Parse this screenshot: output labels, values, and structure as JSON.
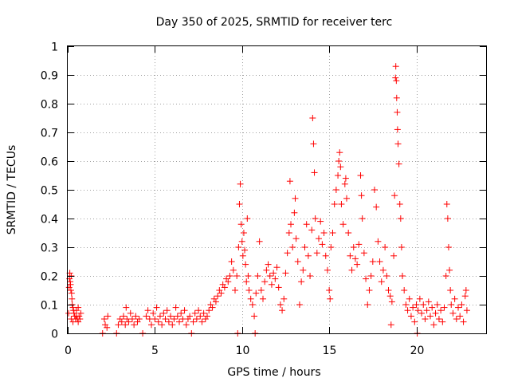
{
  "chart_data": {
    "type": "scatter",
    "title": "Day 350 of 2025, SRMTID for receiver terc",
    "xlabel": "GPS time / hours",
    "ylabel": "SRMTID / TECUs",
    "xlim": [
      0,
      24
    ],
    "ylim": [
      0,
      1
    ],
    "x_ticks": [
      0,
      5,
      10,
      15,
      20
    ],
    "x_tick_labels": [
      "0",
      "5",
      "10",
      "15",
      "20"
    ],
    "y_ticks": [
      0,
      0.1,
      0.2,
      0.3,
      0.4,
      0.5,
      0.6,
      0.7,
      0.8,
      0.9,
      1
    ],
    "y_tick_labels": [
      "0",
      "0.1",
      "0.2",
      "0.3",
      "0.4",
      "0.5",
      "0.6",
      "0.7",
      "0.8",
      "0.9",
      "1"
    ],
    "grid": true,
    "marker": "+",
    "series": [
      {
        "name": "SRMTID",
        "color": "#ff0000",
        "points": [
          [
            0.05,
            0.07
          ],
          [
            0.08,
            0.16
          ],
          [
            0.1,
            0.19
          ],
          [
            0.12,
            0.21
          ],
          [
            0.14,
            0.18
          ],
          [
            0.16,
            0.17
          ],
          [
            0.18,
            0.15
          ],
          [
            0.2,
            0.2
          ],
          [
            0.22,
            0.14
          ],
          [
            0.24,
            0.12
          ],
          [
            0.26,
            0.1
          ],
          [
            0.3,
            0.09
          ],
          [
            0.33,
            0.08
          ],
          [
            0.36,
            0.07
          ],
          [
            0.4,
            0.06
          ],
          [
            0.45,
            0.05
          ],
          [
            0.5,
            0.06
          ],
          [
            0.55,
            0.05
          ],
          [
            0.6,
            0.04
          ],
          [
            0.65,
            0.06
          ],
          [
            0.7,
            0.05
          ],
          [
            0.75,
            0.07
          ],
          [
            0.2,
            0.05
          ],
          [
            0.3,
            0.04
          ],
          [
            0.5,
            0.08
          ],
          [
            0.6,
            0.09
          ],
          [
            2.0,
            0.0
          ],
          [
            2.1,
            0.05
          ],
          [
            2.15,
            0.03
          ],
          [
            2.25,
            0.02
          ],
          [
            2.3,
            0.06
          ],
          [
            2.8,
            0.0
          ],
          [
            2.9,
            0.03
          ],
          [
            3.0,
            0.05
          ],
          [
            3.1,
            0.04
          ],
          [
            3.2,
            0.06
          ],
          [
            3.3,
            0.03
          ],
          [
            3.35,
            0.09
          ],
          [
            3.4,
            0.05
          ],
          [
            3.5,
            0.04
          ],
          [
            3.6,
            0.07
          ],
          [
            3.7,
            0.05
          ],
          [
            3.8,
            0.03
          ],
          [
            3.9,
            0.06
          ],
          [
            4.0,
            0.04
          ],
          [
            4.1,
            0.05
          ],
          [
            4.3,
            0.0
          ],
          [
            4.5,
            0.06
          ],
          [
            4.6,
            0.08
          ],
          [
            4.7,
            0.05
          ],
          [
            4.8,
            0.03
          ],
          [
            4.9,
            0.07
          ],
          [
            5.0,
            0.05
          ],
          [
            5.1,
            0.09
          ],
          [
            5.2,
            0.04
          ],
          [
            5.3,
            0.06
          ],
          [
            5.4,
            0.03
          ],
          [
            5.5,
            0.07
          ],
          [
            5.6,
            0.05
          ],
          [
            5.7,
            0.08
          ],
          [
            5.8,
            0.04
          ],
          [
            5.9,
            0.06
          ],
          [
            6.0,
            0.03
          ],
          [
            6.1,
            0.05
          ],
          [
            6.2,
            0.09
          ],
          [
            6.3,
            0.06
          ],
          [
            6.4,
            0.04
          ],
          [
            6.5,
            0.07
          ],
          [
            6.6,
            0.05
          ],
          [
            6.7,
            0.08
          ],
          [
            6.8,
            0.03
          ],
          [
            6.9,
            0.05
          ],
          [
            7.0,
            0.06
          ],
          [
            7.1,
            0.0
          ],
          [
            7.2,
            0.04
          ],
          [
            7.3,
            0.07
          ],
          [
            7.4,
            0.05
          ],
          [
            7.5,
            0.08
          ],
          [
            7.6,
            0.06
          ],
          [
            7.7,
            0.04
          ],
          [
            7.8,
            0.07
          ],
          [
            7.9,
            0.05
          ],
          [
            8.0,
            0.06
          ],
          [
            8.1,
            0.08
          ],
          [
            8.2,
            0.1
          ],
          [
            8.3,
            0.09
          ],
          [
            8.4,
            0.12
          ],
          [
            8.5,
            0.11
          ],
          [
            8.6,
            0.13
          ],
          [
            8.7,
            0.15
          ],
          [
            8.8,
            0.14
          ],
          [
            8.9,
            0.17
          ],
          [
            9.0,
            0.16
          ],
          [
            9.1,
            0.19
          ],
          [
            9.2,
            0.18
          ],
          [
            9.3,
            0.2
          ],
          [
            9.4,
            0.25
          ],
          [
            9.5,
            0.22
          ],
          [
            9.6,
            0.15
          ],
          [
            9.7,
            0.2
          ],
          [
            9.75,
            0.0
          ],
          [
            9.8,
            0.3
          ],
          [
            9.85,
            0.45
          ],
          [
            9.9,
            0.52
          ],
          [
            9.95,
            0.38
          ],
          [
            10.0,
            0.32
          ],
          [
            10.05,
            0.27
          ],
          [
            10.1,
            0.35
          ],
          [
            10.15,
            0.29
          ],
          [
            10.2,
            0.24
          ],
          [
            10.25,
            0.18
          ],
          [
            10.3,
            0.4
          ],
          [
            10.35,
            0.2
          ],
          [
            10.4,
            0.15
          ],
          [
            10.5,
            0.12
          ],
          [
            10.6,
            0.1
          ],
          [
            10.7,
            0.06
          ],
          [
            10.75,
            0.0
          ],
          [
            10.8,
            0.14
          ],
          [
            10.9,
            0.2
          ],
          [
            11.0,
            0.32
          ],
          [
            11.1,
            0.15
          ],
          [
            11.2,
            0.12
          ],
          [
            11.3,
            0.18
          ],
          [
            11.4,
            0.22
          ],
          [
            11.5,
            0.24
          ],
          [
            11.6,
            0.2
          ],
          [
            11.7,
            0.17
          ],
          [
            11.8,
            0.21
          ],
          [
            11.9,
            0.19
          ],
          [
            12.0,
            0.23
          ],
          [
            12.1,
            0.16
          ],
          [
            12.2,
            0.1
          ],
          [
            12.3,
            0.08
          ],
          [
            12.4,
            0.12
          ],
          [
            12.5,
            0.21
          ],
          [
            12.6,
            0.28
          ],
          [
            12.7,
            0.35
          ],
          [
            12.75,
            0.53
          ],
          [
            12.8,
            0.38
          ],
          [
            12.9,
            0.3
          ],
          [
            13.0,
            0.42
          ],
          [
            13.05,
            0.47
          ],
          [
            13.1,
            0.33
          ],
          [
            13.2,
            0.25
          ],
          [
            13.3,
            0.1
          ],
          [
            13.4,
            0.18
          ],
          [
            13.5,
            0.22
          ],
          [
            13.6,
            0.3
          ],
          [
            13.7,
            0.38
          ],
          [
            13.8,
            0.27
          ],
          [
            13.9,
            0.2
          ],
          [
            14.0,
            0.36
          ],
          [
            14.05,
            0.75
          ],
          [
            14.1,
            0.66
          ],
          [
            14.15,
            0.56
          ],
          [
            14.2,
            0.4
          ],
          [
            14.3,
            0.28
          ],
          [
            14.4,
            0.33
          ],
          [
            14.5,
            0.39
          ],
          [
            14.6,
            0.31
          ],
          [
            14.7,
            0.35
          ],
          [
            14.8,
            0.27
          ],
          [
            14.9,
            0.22
          ],
          [
            15.0,
            0.15
          ],
          [
            15.05,
            0.12
          ],
          [
            15.1,
            0.3
          ],
          [
            15.2,
            0.35
          ],
          [
            15.3,
            0.45
          ],
          [
            15.4,
            0.5
          ],
          [
            15.5,
            0.55
          ],
          [
            15.55,
            0.6
          ],
          [
            15.6,
            0.63
          ],
          [
            15.65,
            0.58
          ],
          [
            15.7,
            0.45
          ],
          [
            15.8,
            0.38
          ],
          [
            15.9,
            0.52
          ],
          [
            15.95,
            0.54
          ],
          [
            16.0,
            0.47
          ],
          [
            16.1,
            0.35
          ],
          [
            16.2,
            0.27
          ],
          [
            16.3,
            0.22
          ],
          [
            16.4,
            0.3
          ],
          [
            16.5,
            0.26
          ],
          [
            16.6,
            0.24
          ],
          [
            16.7,
            0.31
          ],
          [
            16.8,
            0.55
          ],
          [
            16.85,
            0.48
          ],
          [
            16.9,
            0.4
          ],
          [
            17.0,
            0.28
          ],
          [
            17.1,
            0.19
          ],
          [
            17.2,
            0.1
          ],
          [
            17.3,
            0.15
          ],
          [
            17.4,
            0.2
          ],
          [
            17.5,
            0.25
          ],
          [
            17.6,
            0.5
          ],
          [
            17.7,
            0.44
          ],
          [
            17.8,
            0.32
          ],
          [
            17.9,
            0.25
          ],
          [
            18.0,
            0.18
          ],
          [
            18.1,
            0.22
          ],
          [
            18.2,
            0.3
          ],
          [
            18.3,
            0.2
          ],
          [
            18.4,
            0.15
          ],
          [
            18.5,
            0.13
          ],
          [
            18.55,
            0.03
          ],
          [
            18.6,
            0.11
          ],
          [
            18.7,
            0.27
          ],
          [
            18.75,
            0.48
          ],
          [
            18.8,
            0.89
          ],
          [
            18.82,
            0.93
          ],
          [
            18.85,
            0.88
          ],
          [
            18.87,
            0.82
          ],
          [
            18.9,
            0.77
          ],
          [
            18.92,
            0.71
          ],
          [
            18.95,
            0.66
          ],
          [
            19.0,
            0.59
          ],
          [
            19.05,
            0.45
          ],
          [
            19.1,
            0.4
          ],
          [
            19.15,
            0.3
          ],
          [
            19.2,
            0.2
          ],
          [
            19.3,
            0.15
          ],
          [
            19.4,
            0.1
          ],
          [
            19.5,
            0.08
          ],
          [
            19.6,
            0.12
          ],
          [
            19.7,
            0.06
          ],
          [
            19.8,
            0.09
          ],
          [
            19.9,
            0.04
          ],
          [
            20.0,
            0.1
          ],
          [
            20.05,
            0.0
          ],
          [
            20.1,
            0.08
          ],
          [
            20.2,
            0.12
          ],
          [
            20.3,
            0.07
          ],
          [
            20.4,
            0.1
          ],
          [
            20.5,
            0.05
          ],
          [
            20.6,
            0.08
          ],
          [
            20.7,
            0.11
          ],
          [
            20.8,
            0.06
          ],
          [
            20.9,
            0.09
          ],
          [
            21.0,
            0.03
          ],
          [
            21.1,
            0.07
          ],
          [
            21.2,
            0.1
          ],
          [
            21.3,
            0.05
          ],
          [
            21.4,
            0.08
          ],
          [
            21.5,
            0.04
          ],
          [
            21.6,
            0.09
          ],
          [
            21.7,
            0.2
          ],
          [
            21.75,
            0.45
          ],
          [
            21.8,
            0.4
          ],
          [
            21.85,
            0.3
          ],
          [
            21.9,
            0.22
          ],
          [
            21.95,
            0.15
          ],
          [
            22.0,
            0.1
          ],
          [
            22.1,
            0.07
          ],
          [
            22.2,
            0.12
          ],
          [
            22.3,
            0.05
          ],
          [
            22.4,
            0.09
          ],
          [
            22.5,
            0.06
          ],
          [
            22.6,
            0.1
          ],
          [
            22.7,
            0.04
          ],
          [
            22.8,
            0.13
          ],
          [
            22.85,
            0.15
          ],
          [
            22.9,
            0.08
          ]
        ]
      }
    ]
  }
}
